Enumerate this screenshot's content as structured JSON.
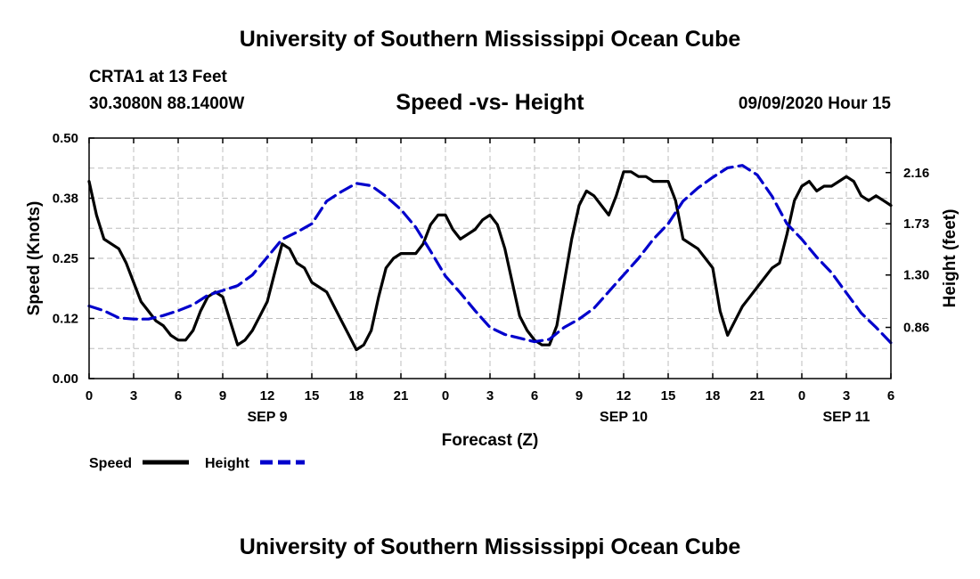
{
  "header": {
    "top_title": "University of Southern Mississippi Ocean Cube",
    "bottom_title": "University of Southern Mississippi Ocean Cube",
    "station": "CRTA1 at 13 Feet",
    "coordinates": "30.3080N 88.1400W",
    "datetime": "09/09/2020 Hour 15"
  },
  "chart_data": {
    "type": "line",
    "title": "Speed -vs- Height",
    "xlabel": "Forecast (Z)",
    "ylabel_left": "Speed (Knots)",
    "ylabel_right": "Height (feet)",
    "x_unit": "forecast hour (offset from 00Z SEP 9)",
    "xlim": [
      0,
      54
    ],
    "ylim_left": [
      0,
      0.5
    ],
    "ylim_right": [
      0.43,
      2.45
    ],
    "left_ticks": [
      "0.00",
      "0.12",
      "0.25",
      "0.38",
      "0.50"
    ],
    "right_ticks": [
      {
        "label": "0.86",
        "value": 0.86
      },
      {
        "label": "1.30",
        "value": 1.3
      },
      {
        "label": "1.73",
        "value": 1.73
      },
      {
        "label": "2.16",
        "value": 2.16
      }
    ],
    "x_tick_labels": [
      "0",
      "3",
      "6",
      "9",
      "12",
      "15",
      "18",
      "21",
      "0",
      "3",
      "6",
      "9",
      "12",
      "15",
      "18",
      "21",
      "0",
      "3",
      "6"
    ],
    "x_tick_step": 3,
    "date_labels": [
      {
        "label": "SEP 9",
        "hour": 12
      },
      {
        "label": "SEP 10",
        "hour": 36
      },
      {
        "label": "SEP 11",
        "hour": 51
      }
    ],
    "grid": true,
    "legend_position": "bottom-left",
    "series": [
      {
        "name": "Speed",
        "axis": "left",
        "color": "#000000",
        "style": "solid",
        "x": [
          0,
          0.5,
          1,
          1.5,
          2,
          2.5,
          3,
          3.5,
          4,
          4.5,
          5,
          5.5,
          6,
          6.5,
          7,
          7.5,
          8,
          8.5,
          9,
          9.5,
          10,
          10.5,
          11,
          11.5,
          12,
          12.5,
          13,
          13.5,
          14,
          14.5,
          15,
          15.5,
          16,
          16.5,
          17,
          17.5,
          18,
          18.5,
          19,
          19.5,
          20,
          20.5,
          21,
          21.5,
          22,
          22.5,
          23,
          23.5,
          24,
          24.5,
          25,
          25.5,
          26,
          26.5,
          27,
          27.5,
          28,
          28.5,
          29,
          29.5,
          30,
          30.5,
          31,
          31.5,
          32,
          32.5,
          33,
          33.5,
          34,
          34.5,
          35,
          35.5,
          36,
          36.5,
          37,
          37.5,
          38,
          38.5,
          39,
          39.5,
          40,
          40.5,
          41,
          41.5,
          42,
          42.5,
          43,
          43.5,
          44,
          44.5,
          45,
          45.5,
          46,
          46.5,
          47,
          47.5,
          48,
          48.5,
          49,
          49.5,
          50,
          50.5,
          51,
          51.5,
          52,
          52.5,
          53,
          53.5,
          54
        ],
        "values": [
          0.41,
          0.34,
          0.29,
          0.28,
          0.27,
          0.24,
          0.2,
          0.16,
          0.14,
          0.12,
          0.11,
          0.09,
          0.08,
          0.08,
          0.1,
          0.14,
          0.17,
          0.18,
          0.17,
          0.12,
          0.07,
          0.08,
          0.1,
          0.13,
          0.16,
          0.22,
          0.28,
          0.27,
          0.24,
          0.23,
          0.2,
          0.19,
          0.18,
          0.15,
          0.12,
          0.09,
          0.06,
          0.07,
          0.1,
          0.17,
          0.23,
          0.25,
          0.26,
          0.26,
          0.26,
          0.28,
          0.32,
          0.34,
          0.34,
          0.31,
          0.29,
          0.3,
          0.31,
          0.33,
          0.34,
          0.32,
          0.27,
          0.2,
          0.13,
          0.1,
          0.08,
          0.07,
          0.07,
          0.11,
          0.2,
          0.29,
          0.36,
          0.39,
          0.38,
          0.36,
          0.34,
          0.38,
          0.43,
          0.43,
          0.42,
          0.42,
          0.41,
          0.41,
          0.41,
          0.37,
          0.29,
          0.28,
          0.27,
          0.25,
          0.23,
          0.14,
          0.09,
          0.12,
          0.15,
          0.17,
          0.19,
          0.21,
          0.23,
          0.24,
          0.3,
          0.37,
          0.4,
          0.41,
          0.39,
          0.4,
          0.4,
          0.41,
          0.42,
          0.41,
          0.38,
          0.37,
          0.38,
          0.37,
          0.36
        ]
      },
      {
        "name": "Height",
        "axis": "right",
        "color": "#0000cc",
        "style": "dashed",
        "x": [
          0,
          1,
          2,
          3,
          4,
          5,
          6,
          7,
          8,
          9,
          10,
          11,
          12,
          13,
          14,
          15,
          16,
          17,
          18,
          19,
          20,
          21,
          22,
          23,
          24,
          25,
          26,
          27,
          28,
          29,
          30,
          31,
          32,
          33,
          34,
          35,
          36,
          37,
          38,
          39,
          40,
          41,
          42,
          43,
          44,
          45,
          46,
          47,
          48,
          49,
          50,
          51,
          52,
          53,
          54
        ],
        "values": [
          1.04,
          1.0,
          0.94,
          0.93,
          0.93,
          0.96,
          1.0,
          1.05,
          1.13,
          1.17,
          1.21,
          1.3,
          1.45,
          1.6,
          1.66,
          1.73,
          1.92,
          2.0,
          2.07,
          2.05,
          1.96,
          1.85,
          1.7,
          1.5,
          1.29,
          1.15,
          1.0,
          0.86,
          0.8,
          0.77,
          0.74,
          0.76,
          0.86,
          0.93,
          1.02,
          1.16,
          1.3,
          1.44,
          1.6,
          1.73,
          1.92,
          2.03,
          2.12,
          2.2,
          2.22,
          2.14,
          1.96,
          1.73,
          1.6,
          1.45,
          1.32,
          1.15,
          0.98,
          0.86,
          0.73
        ]
      }
    ]
  }
}
